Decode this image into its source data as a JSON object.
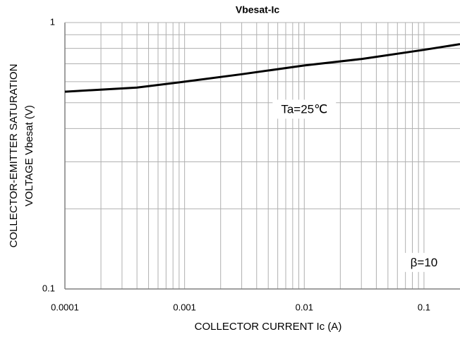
{
  "chart_data": {
    "type": "line",
    "title": "Vbesat-Ic",
    "xlabel": "COLLECTOR  CURRENT  Ic (A)",
    "ylabel": [
      "COLLECTOR-EMITTER  SATURATION",
      "VOLTAGE     Vbesat (V)"
    ],
    "x_log": true,
    "y_log": true,
    "grid": true,
    "xlim": [
      0.0001,
      0.2
    ],
    "ylim": [
      0.1,
      1
    ],
    "xticks": [
      0.0001,
      0.001,
      0.01,
      0.1
    ],
    "yticks": [
      0.1,
      1
    ],
    "x_minor_ticks": [
      0.0002,
      0.0003,
      0.0004,
      0.0005,
      0.0006,
      0.0007,
      0.0008,
      0.0009,
      0.002,
      0.003,
      0.004,
      0.005,
      0.006,
      0.007,
      0.008,
      0.009,
      0.02,
      0.03,
      0.04,
      0.05,
      0.06,
      0.07,
      0.08,
      0.09
    ],
    "y_minor_ticks": [
      0.2,
      0.3,
      0.4,
      0.5,
      0.6,
      0.7,
      0.8,
      0.9
    ],
    "series": [
      {
        "color": "#000000",
        "x": [
          0.0001,
          0.0004,
          0.001,
          0.003,
          0.01,
          0.03,
          0.1,
          0.2
        ],
        "values": [
          0.55,
          0.57,
          0.6,
          0.64,
          0.69,
          0.73,
          0.79,
          0.83
        ]
      }
    ],
    "annotations": [
      {
        "text": "Ta=25℃",
        "x": 0.01,
        "y": 0.47
      },
      {
        "text": "β=10",
        "x": 0.1,
        "y": 0.125
      }
    ]
  }
}
